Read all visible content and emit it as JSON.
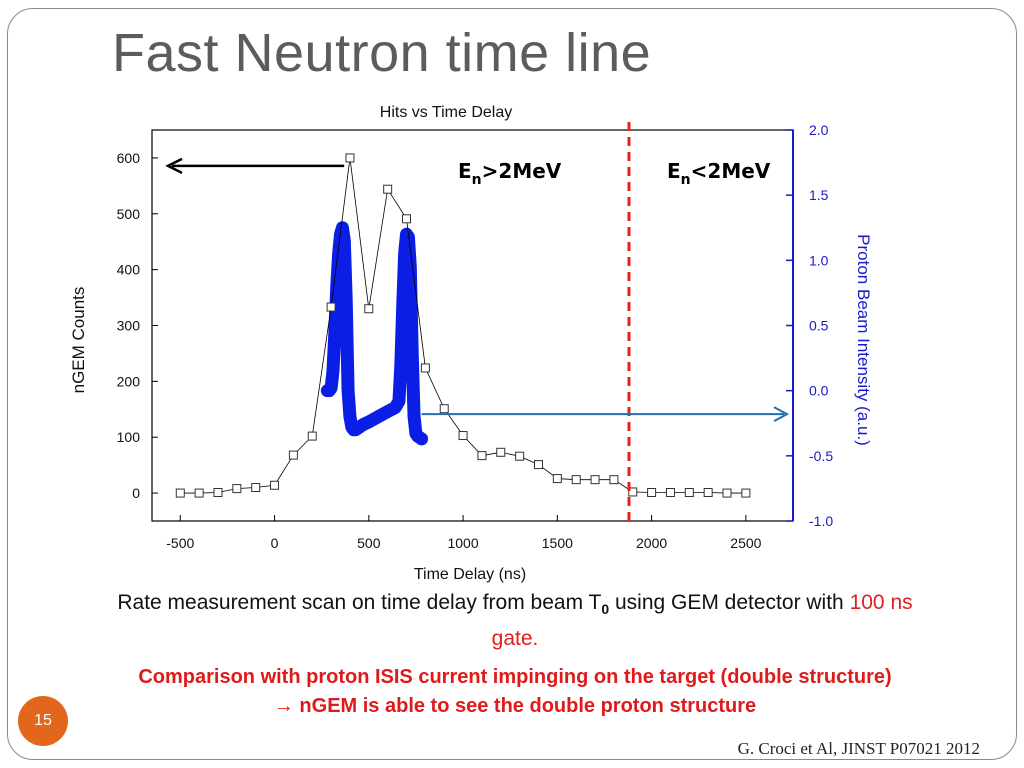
{
  "slide": {
    "title": "Fast Neutron time line",
    "page_number": "15",
    "citation": "G. Croci et Al, JINST P07021 2012",
    "caption_line1_a": "Rate measurement scan on time delay from beam T",
    "caption_line1_sub": "0",
    "caption_line1_b": " using GEM detector with ",
    "caption_line1_red": "100 ns",
    "caption_line1_c": " gate.",
    "caption_line2": "Comparison with proton ISIS current impinging on the target (double structure)",
    "caption_line3_arrow": "→",
    "caption_line3": " nGEM is able to see the double proton structure"
  },
  "colors": {
    "title": "#5c5c5c",
    "emphasis_red": "#e02020",
    "proton_blue": "#0a1ee6",
    "right_axis_blue": "#1a1acc",
    "arrow_blue": "#1f6fb5",
    "divider_red": "#e8201f",
    "page_badge": "#e2671c"
  },
  "chart_data": {
    "type": "line",
    "title": "Hits vs Time Delay",
    "xlabel": "Time Delay (ns)",
    "ylabel_left": "nGEM Counts",
    "ylabel_right": "Proton Beam Intensity (a.u.)",
    "xlim": [
      -650,
      2750
    ],
    "ylim_left": [
      -50,
      650
    ],
    "ylim_right": [
      -1.0,
      2.0
    ],
    "x_ticks": [
      -500,
      0,
      500,
      1000,
      1500,
      2000,
      2500
    ],
    "y_ticks_left": [
      0,
      100,
      200,
      300,
      400,
      500,
      600
    ],
    "y_ticks_right": [
      -1.0,
      -0.5,
      0.0,
      0.5,
      1.0,
      1.5,
      2.0
    ],
    "y_ticks_right_labels": [
      "-1.0",
      "-0.5",
      "0.0",
      "0.5",
      "1.0",
      "1.5",
      "2.0"
    ],
    "series": [
      {
        "axis": "left",
        "marker": "open-square",
        "x": [
          -500,
          -400,
          -300,
          -200,
          -100,
          0,
          100,
          200,
          300,
          400,
          500,
          600,
          700,
          800,
          900,
          1000,
          1100,
          1200,
          1300,
          1400,
          1500,
          1600,
          1700,
          1800,
          1900,
          2000,
          2100,
          2200,
          2300,
          2400,
          2500
        ],
        "y": [
          0,
          0,
          1,
          8,
          10,
          14,
          68,
          102,
          333,
          600,
          330,
          544,
          491,
          224,
          151,
          103,
          67,
          73,
          66,
          51,
          26,
          24,
          24,
          24,
          2,
          1,
          1,
          1,
          1,
          0,
          0
        ]
      },
      {
        "axis": "right",
        "style": "thick-line",
        "x": [
          280,
          290,
          300,
          310,
          320,
          330,
          340,
          350,
          360,
          370,
          380,
          390,
          400,
          410,
          420,
          430,
          440,
          450,
          470,
          500,
          550,
          600,
          640,
          660,
          670,
          680,
          690,
          700,
          710,
          720,
          730,
          740,
          750,
          760,
          770,
          780
        ],
        "y": [
          0.0,
          0.0,
          0.02,
          0.15,
          0.45,
          0.8,
          1.05,
          1.2,
          1.25,
          1.15,
          0.7,
          0.0,
          -0.2,
          -0.28,
          -0.3,
          -0.3,
          -0.29,
          -0.28,
          -0.26,
          -0.24,
          -0.2,
          -0.16,
          -0.13,
          -0.08,
          0.2,
          0.65,
          1.05,
          1.2,
          1.18,
          0.95,
          0.3,
          -0.2,
          -0.33,
          -0.35,
          -0.36,
          -0.37
        ]
      }
    ],
    "annotations": [
      {
        "label": "E",
        "sub": "n",
        "rest": ">2MeV"
      },
      {
        "label": "E",
        "sub": "n",
        "rest": "<2MeV"
      }
    ],
    "divider_x": 1880,
    "arrow_left_from_x": 380,
    "arrow_left_y": 600,
    "arrow_right_from_x": 780,
    "arrow_right_y": -0.18,
    "grid": false
  }
}
